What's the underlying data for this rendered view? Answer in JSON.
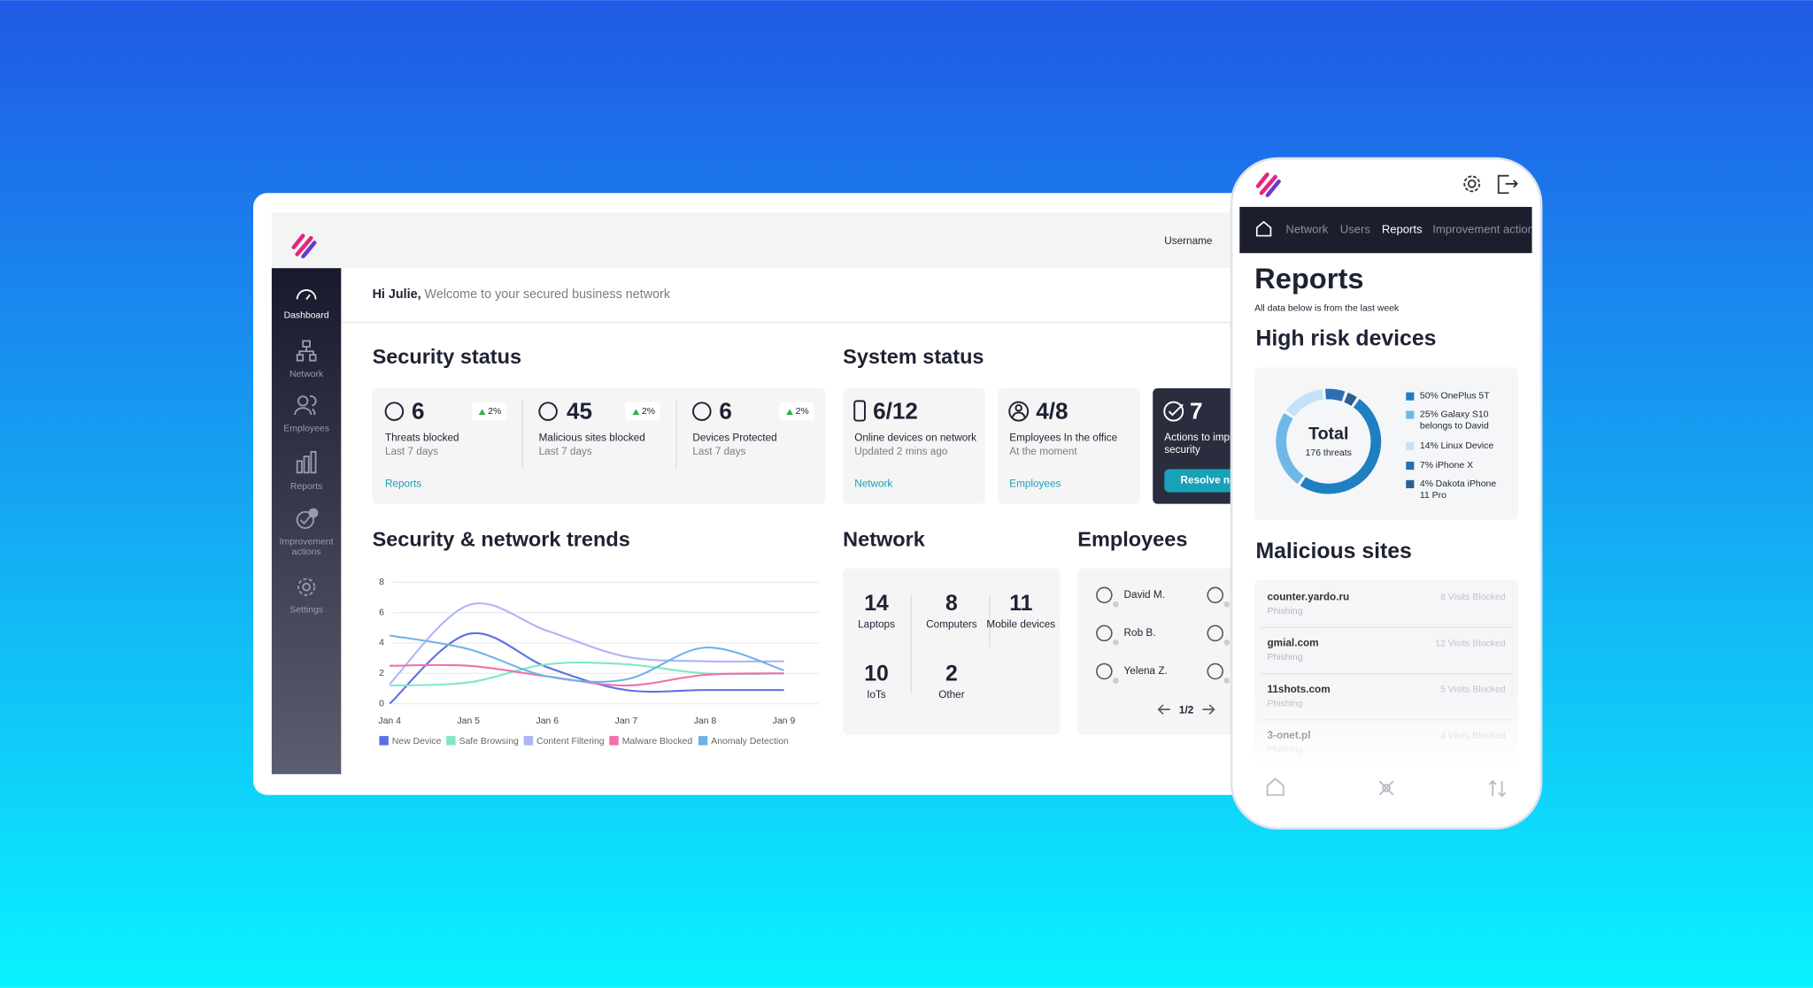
{
  "desktop": {
    "username": "Username",
    "sidebar": [
      "Dashboard",
      "Network",
      "Employees",
      "Reports",
      "Improvement actions",
      "Settings"
    ],
    "greeting": {
      "name": "Hi Julie,",
      "text": "Welcome to your secured business network"
    },
    "security_status": {
      "title": "Security status",
      "link": "Reports",
      "cards": [
        {
          "value": 6,
          "change": "2%",
          "label": "Threats blocked",
          "period": "Last 7 days"
        },
        {
          "value": 45,
          "change": "2%",
          "label": "Malicious sites blocked",
          "period": "Last 7 days"
        },
        {
          "value": 6,
          "change": "2%",
          "label": "Devices Protected",
          "period": "Last 7 days"
        }
      ]
    },
    "system_status": {
      "title": "System status",
      "cards": [
        {
          "value": "6/12",
          "label": "Online devices on network",
          "sub": "Updated 2 mins ago",
          "link": "Network"
        },
        {
          "value": "4/8",
          "label": "Employees In the office",
          "sub": "At the moment",
          "link": "Employees"
        },
        {
          "value": 7,
          "label": "Actions to improve security",
          "button": "Resolve now"
        }
      ]
    },
    "network": {
      "title": "Network",
      "items": [
        {
          "value": 14,
          "label": "Laptops"
        },
        {
          "value": 8,
          "label": "Computers"
        },
        {
          "value": 11,
          "label": "Mobile devices"
        },
        {
          "value": 10,
          "label": "IoTs"
        },
        {
          "value": 2,
          "label": "Other"
        }
      ]
    },
    "employees": {
      "title": "Employees",
      "names": [
        "David M.",
        "Rob B.",
        "Yelena Z."
      ],
      "page": "1/2"
    }
  },
  "phone": {
    "nav": [
      "Network",
      "Users",
      "Reports",
      "Improvement actions"
    ],
    "title": "Reports",
    "subtitle": "All data below is from the last week",
    "sites_title": "Malicious sites",
    "sites": [
      {
        "site": "counter.yardo.ru",
        "type": "Phishing",
        "visits": "8 Visits Blocked"
      },
      {
        "site": "gmial.com",
        "type": "Phishing",
        "visits": "12 Visits Blocked"
      },
      {
        "site": "11shots.com",
        "type": "Phishing",
        "visits": "5 Visits Blocked"
      },
      {
        "site": "3-onet.pl",
        "type": "Phishing",
        "visits": "4 Visits Blocked"
      }
    ]
  },
  "chart_data": [
    {
      "type": "line",
      "title": "Security & network trends",
      "categories": [
        "Jan 4",
        "Jan 5",
        "Jan 6",
        "Jan 7",
        "Jan 8",
        "Jan 9"
      ],
      "series": [
        {
          "name": "New Device",
          "color": "#5b6ee6",
          "values": [
            0,
            4.6,
            2.4,
            0.9,
            0.9,
            0.9
          ]
        },
        {
          "name": "Safe Browsing",
          "color": "#7ee8c4",
          "values": [
            1.2,
            1.4,
            2.6,
            2.6,
            2.0,
            2.0
          ]
        },
        {
          "name": "Content Filtering",
          "color": "#aeb4f7",
          "values": [
            1.3,
            6.5,
            4.8,
            3.1,
            2.8,
            2.8
          ]
        },
        {
          "name": "Malware Blocked",
          "color": "#f06fae",
          "values": [
            2.5,
            2.5,
            1.8,
            1.2,
            1.9,
            2.0
          ]
        },
        {
          "name": "Anomaly Detection",
          "color": "#6fb3e6",
          "values": [
            4.5,
            3.6,
            1.8,
            1.6,
            3.7,
            2.2
          ]
        }
      ],
      "ylim": [
        0,
        8
      ],
      "yticks": [
        0,
        2,
        4,
        6,
        8
      ],
      "grid": true,
      "legend": "bottom"
    },
    {
      "type": "pie",
      "title": "High risk devices",
      "center_label": "Total",
      "center_sublabel": "176 threats",
      "categories": [
        "OnePlus 5T",
        "Galaxy S10 belongs to David",
        "Linux Device",
        "iPhone X",
        "Dakota iPhone 11 Pro"
      ],
      "values": [
        50,
        25,
        14,
        7,
        4
      ],
      "value_labels": [
        "50%",
        "25%",
        "14%",
        "7%",
        "4%"
      ],
      "colors": [
        "#1f7fc1",
        "#6db8e6",
        "#c4e2f5",
        "#2a6fb0",
        "#2c5f8f"
      ],
      "legend": "right"
    }
  ]
}
